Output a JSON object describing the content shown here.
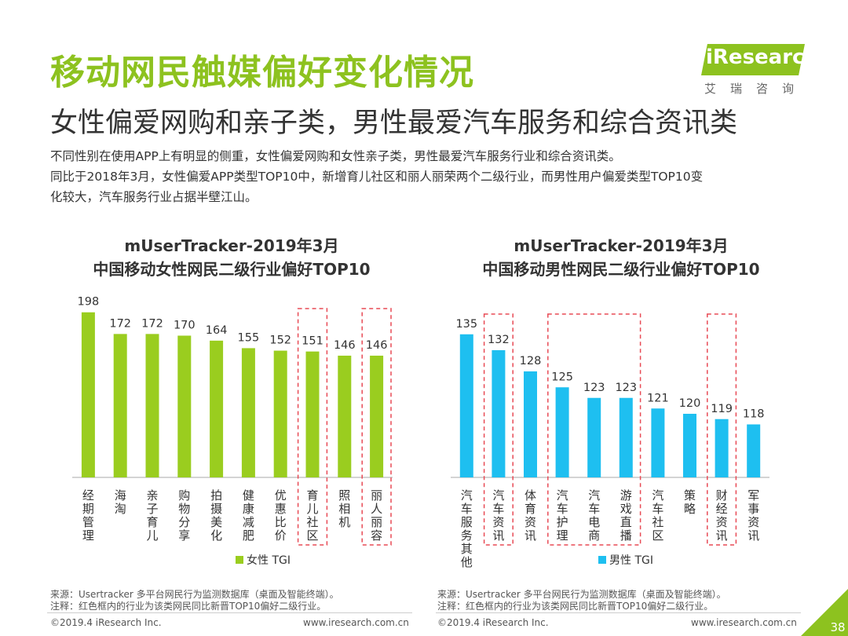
{
  "title": "移动网民触媒偏好变化情况",
  "subtitle": "女性偏爱网购和亲子类，男性最爱汽车服务和综合资讯类",
  "description": [
    "不同性别在使用APP上有明显的侧重，女性偏爱网购和女性亲子类，男性最爱汽车服务行业和综合资讯类。",
    "同比于2018年3月，女性偏爱APP类型TOP10中，新增育儿社区和丽人丽荣两个二级行业，而男性用户偏爱类型TOP10变",
    "化较大，汽车服务行业占据半壁江山。"
  ],
  "logo": {
    "text": "iResearch",
    "cn": "艾瑞咨询"
  },
  "colors": {
    "accent": "#8dc21f",
    "female": "#9acd1f",
    "male": "#1ebff0",
    "highlight": "#e84a55"
  },
  "chart_data": [
    {
      "type": "bar",
      "title_line1": "mUserTracker-2019年3月",
      "title_line2": "中国移动女性网民二级行业偏好TOP10",
      "categories": [
        "经期管理",
        "海淘",
        "亲子育儿",
        "购物分享",
        "拍摄美化",
        "健康减肥",
        "优惠比价",
        "育儿社区",
        "照相机",
        "丽人丽容"
      ],
      "series": [
        {
          "name": "女性 TGI",
          "values": [
            198,
            172,
            172,
            170,
            164,
            155,
            152,
            151,
            146,
            146
          ]
        }
      ],
      "highlighted": [
        "育儿社区",
        "丽人丽容"
      ],
      "ylim": [
        0,
        210
      ]
    },
    {
      "type": "bar",
      "title_line1": "mUserTracker-2019年3月",
      "title_line2": "中国移动男性网民二级行业偏好TOP10",
      "categories": [
        "汽车服务其他",
        "汽车资讯",
        "体育资讯",
        "汽车护理",
        "汽车电商",
        "游戏直播",
        "汽车社区",
        "策略",
        "财经资讯",
        "军事资讯"
      ],
      "series": [
        {
          "name": "男性 TGI",
          "values": [
            135,
            132,
            128,
            125,
            123,
            123,
            121,
            120,
            119,
            118
          ]
        }
      ],
      "highlighted": [
        "汽车资讯",
        "汽车护理",
        "汽车电商",
        "游戏直播",
        "财经资讯"
      ],
      "ylim": [
        108,
        140
      ]
    }
  ],
  "sources": [
    {
      "line1": "来源：Usertracker 多平台网民行为监测数据库（桌面及智能终端）。",
      "line2": "注释：红色框内的行业为该类网民同比新晋TOP10偏好二级行业。"
    },
    {
      "line1": "来源：Usertracker 多平台网民行为监测数据库（桌面及智能终端）。",
      "line2": "注释：红色框内的行业为该类网民同比新晋TOP10偏好二级行业。"
    }
  ],
  "footer": {
    "left_copyright": "©2019.4 iResearch Inc.",
    "left_url": "www.iresearch.com.cn",
    "right_copyright": "©2019.4 iResearch Inc.",
    "right_url": "www.iresearch.com.cn",
    "page_number": "38"
  }
}
